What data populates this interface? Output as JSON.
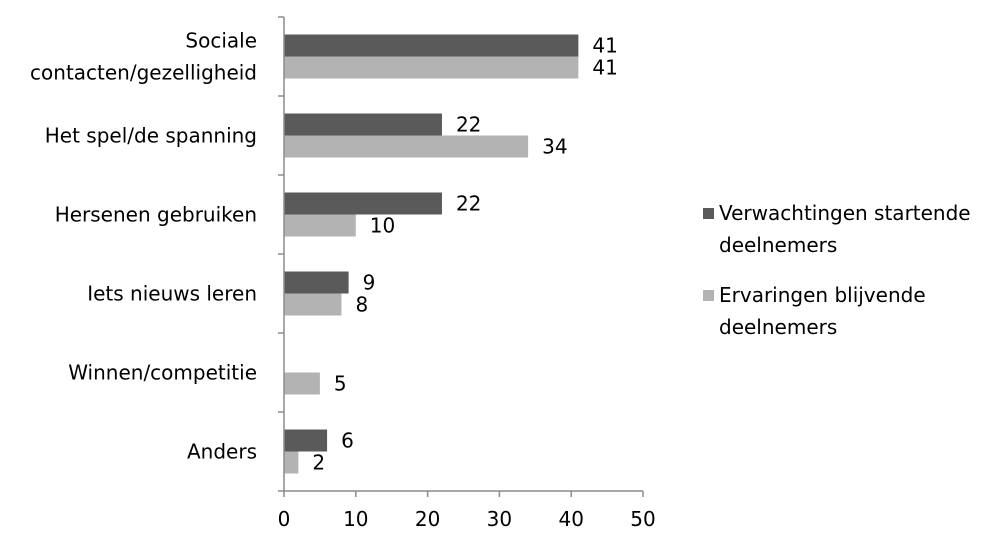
{
  "chart_data": {
    "type": "bar",
    "orientation": "horizontal",
    "title": "",
    "xlabel": "",
    "ylabel": "",
    "categories": [
      [
        "Sociale",
        "contacten/gezelligheid"
      ],
      [
        "Het spel/de spanning"
      ],
      [
        "Hersenen gebruiken"
      ],
      [
        "Iets nieuws leren"
      ],
      [
        "Winnen/competitie"
      ],
      [
        "Anders"
      ]
    ],
    "series": [
      {
        "name": "Verwachtingen startende deelnemers",
        "legend_lines": [
          "Verwachtingen startende",
          "deelnemers"
        ],
        "color": "#5a5a5a",
        "values": [
          41,
          22,
          22,
          9,
          null,
          6
        ]
      },
      {
        "name": "Ervaringen blijvende deelnemers",
        "legend_lines": [
          "Ervaringen blijvende",
          "deelnemers"
        ],
        "color": "#b3b3b3",
        "values": [
          41,
          34,
          10,
          8,
          5,
          2
        ]
      }
    ],
    "xlim": [
      0,
      50
    ],
    "xticks": [
      0,
      10,
      20,
      30,
      40,
      50
    ],
    "grid": false,
    "legend_position": "right"
  }
}
